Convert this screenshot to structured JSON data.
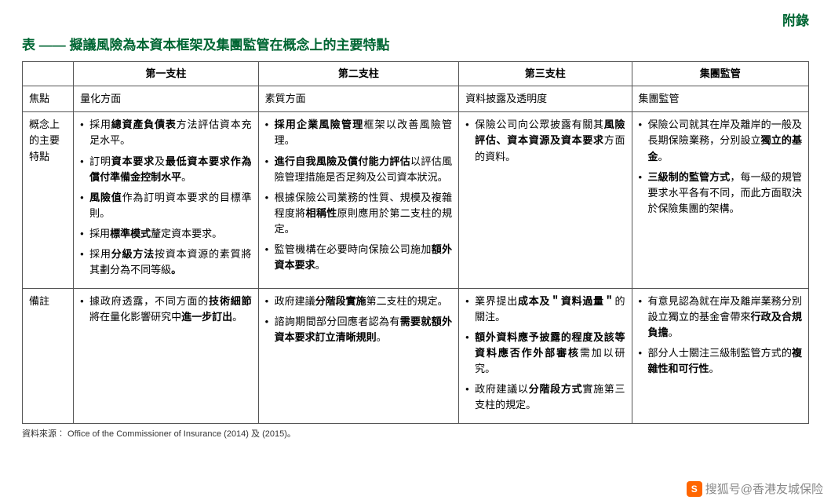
{
  "appendix": "附錄",
  "title": "表 —— 擬議風險為本資本框架及集團監管在概念上的主要特點",
  "headers": {
    "blank": "",
    "c1": "第一支柱",
    "c2": "第二支柱",
    "c3": "第三支柱",
    "c4": "集團監管"
  },
  "focus": {
    "label": "焦點",
    "c1": "量化方面",
    "c2": "素質方面",
    "c3": "資料披露及透明度",
    "c4": "集團監管"
  },
  "concept": {
    "label": "概念上的主要特點",
    "c1": [
      {
        "pre": "採用",
        "b": "總資產負債表",
        "post": "方法評估資本充足水平。"
      },
      {
        "pre": "訂明",
        "b": "資本要求",
        "mid": "及",
        "b2": "最低資本要求作為償付準備金控制水平",
        "post": "。"
      },
      {
        "pre": "",
        "b": "風險值",
        "post": "作為訂明資本要求的目標準則。"
      },
      {
        "pre": "採用",
        "b": "標準模式",
        "post": "釐定資本要求。"
      },
      {
        "pre": "採用",
        "b": "分級方法",
        "post": "按資本資源的素質將其劃分為不同等級",
        "tail": "。"
      }
    ],
    "c2": [
      {
        "pre": "",
        "b": "採用企業風險管理",
        "post": "框架以改善風險管理。"
      },
      {
        "pre": "",
        "b": "進行自我風險及償付能力評估",
        "post": "以評估風險管理措施是否足夠及公司資本狀況。"
      },
      {
        "pre": "根據保險公司業務的性質、規模及複雜程度將",
        "b": "相稱性",
        "post": "原則應用於第二支柱的規定。"
      },
      {
        "pre": "監管機構在必要時向保險公司施加",
        "b": "額外資本要求",
        "post": "。"
      }
    ],
    "c3": [
      {
        "pre": "保險公司向公眾披露有關其",
        "b": "風險評估、資本資源及資本要求",
        "post": "方面的資料。"
      }
    ],
    "c4": [
      {
        "pre": "保險公司就其在岸及離岸的一般及長期保險業務，分別設立",
        "b": "獨立的基金",
        "post": "。"
      },
      {
        "pre": "",
        "b": "三級制的監管方式",
        "post": "，每一級的規管要求水平各有不同，而此方面取決於保險集團的架構。"
      }
    ]
  },
  "notes": {
    "label": "備註",
    "c1": [
      {
        "pre": "據政府透露，不同方面的",
        "b": "技術細節",
        "mid": "將在量化影響研究中",
        "b2": "進一步訂出",
        "post": "。"
      }
    ],
    "c2": [
      {
        "pre": "政府建議",
        "b": "分階段實施",
        "post": "第二支柱的規定。"
      },
      {
        "pre": "諮詢期間部分回應者認為有",
        "b": "需要就額外資本要求訂立清晰規則",
        "post": "。"
      }
    ],
    "c3": [
      {
        "pre": "業界提出",
        "b": "成本及＂資料過量＂",
        "post": "的關注。"
      },
      {
        "pre": "",
        "b": "額外資料應予披露的程度及該等資料應否作外部審核",
        "post": "需加以研究。"
      },
      {
        "pre": "政府建議以",
        "b": "分階段方式",
        "post": "實施第三支柱的規定。"
      }
    ],
    "c4": [
      {
        "pre": "有意見認為就在岸及離岸業務分別設立獨立的基金會帶來",
        "b": "行政及合規負擔",
        "post": "。"
      },
      {
        "pre": "部分人士關注三級制監管方式的",
        "b": "複雜性和可行性",
        "post": "。"
      }
    ]
  },
  "source": "資料來源︰ Office of the Commissioner of Insurance (2014) 及 (2015)。",
  "watermark": "搜狐号@香港友城保险"
}
